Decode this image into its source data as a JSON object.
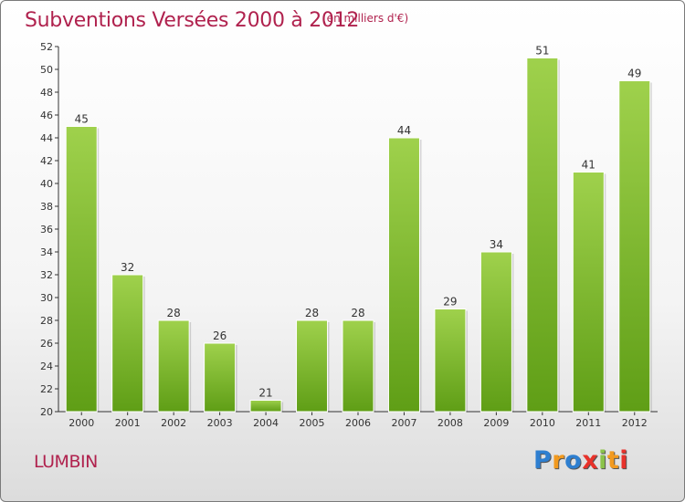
{
  "header": {
    "title": "Subventions Versées 2000 à 2012",
    "subtitle": "(en milliers d'€)"
  },
  "footer": {
    "commune": "LUMBIN",
    "logo_letters": [
      "P",
      "r",
      "o",
      "x",
      "i",
      "t",
      "i"
    ],
    "logo_colors": [
      "#2e7fd0",
      "#f29a1f",
      "#2e7fd0",
      "#e8322b",
      "#8bc34a",
      "#f29a1f",
      "#e8322b"
    ]
  },
  "colors": {
    "bar_light": "#9fd14c",
    "bar_dark": "#5f9e16",
    "text": "#b0224e"
  },
  "chart_data": {
    "type": "bar",
    "categories": [
      "2000",
      "2001",
      "2002",
      "2003",
      "2004",
      "2005",
      "2006",
      "2007",
      "2008",
      "2009",
      "2010",
      "2011",
      "2012"
    ],
    "values": [
      45,
      32,
      28,
      26,
      21,
      28,
      28,
      44,
      29,
      34,
      51,
      41,
      49
    ],
    "title": "Subventions Versées 2000 à 2012",
    "ylim": [
      20,
      52
    ],
    "yticks": [
      20,
      22,
      24,
      26,
      28,
      30,
      32,
      34,
      36,
      38,
      40,
      42,
      44,
      46,
      48,
      50,
      52
    ],
    "grid": false,
    "legend": "none"
  }
}
